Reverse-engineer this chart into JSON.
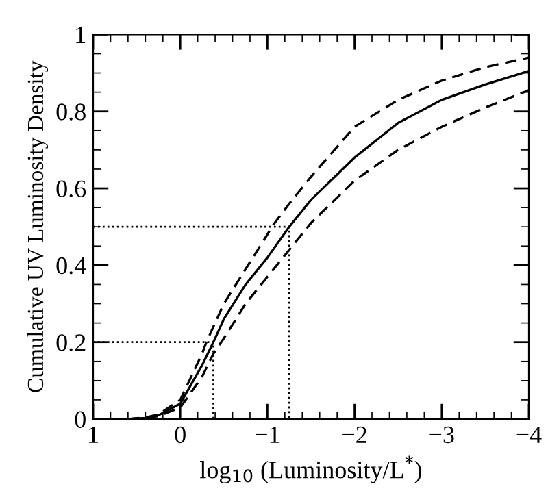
{
  "chart_data": {
    "type": "line",
    "xlabel": "log$_{10}$ (Luminosity/L$^{*}$)",
    "ylabel": "Cumulative UV Luminosity Density",
    "xlim": [
      1,
      -4
    ],
    "xticks": [
      1,
      0,
      -1,
      -2,
      -3,
      -4
    ],
    "ylim": [
      0,
      1
    ],
    "yticks": [
      0,
      0.2,
      0.4,
      0.6,
      0.8,
      1
    ],
    "grid": false,
    "legend": false,
    "series": [
      {
        "color": "#000000",
        "line_style": "solid",
        "x": [
          0.6,
          0.4,
          0.25,
          0,
          -0.25,
          -0.38,
          -0.5,
          -0.75,
          -1,
          -1.25,
          -1.5,
          -2,
          -2.5,
          -3,
          -3.5,
          -4
        ],
        "values": [
          0,
          0.003,
          0.01,
          0.04,
          0.14,
          0.2,
          0.26,
          0.35,
          0.42,
          0.5,
          0.57,
          0.68,
          0.77,
          0.83,
          0.87,
          0.905
        ]
      },
      {
        "color": "#000000",
        "line_style": "dashed",
        "x": [
          0.6,
          0.4,
          0.25,
          0,
          -0.25,
          -0.3,
          -0.5,
          -0.75,
          -1,
          -1.05,
          -1.25,
          -1.5,
          -2,
          -2.5,
          -3,
          -3.5,
          -4
        ],
        "values": [
          0,
          0.004,
          0.012,
          0.05,
          0.17,
          0.2,
          0.3,
          0.39,
          0.48,
          0.5,
          0.56,
          0.63,
          0.76,
          0.83,
          0.88,
          0.915,
          0.94
        ]
      },
      {
        "color": "#000000",
        "line_style": "dashed",
        "x": [
          0.6,
          0.4,
          0.25,
          0,
          -0.25,
          -0.38,
          -0.5,
          -0.75,
          -1,
          -1.25,
          -1.5,
          -2,
          -2.5,
          -3,
          -3.5,
          -4
        ],
        "values": [
          0,
          0.002,
          0.008,
          0.03,
          0.11,
          0.17,
          0.21,
          0.3,
          0.37,
          0.44,
          0.51,
          0.62,
          0.7,
          0.76,
          0.81,
          0.855
        ]
      },
      {
        "color": "#000000",
        "line_style": "dotted",
        "x": [
          1,
          -1.25,
          -1.25
        ],
        "values": [
          0.5,
          0.5,
          0
        ]
      },
      {
        "color": "#000000",
        "line_style": "dotted",
        "x": [
          1,
          -0.38,
          -0.38
        ],
        "values": [
          0.2,
          0.2,
          0
        ]
      }
    ]
  }
}
